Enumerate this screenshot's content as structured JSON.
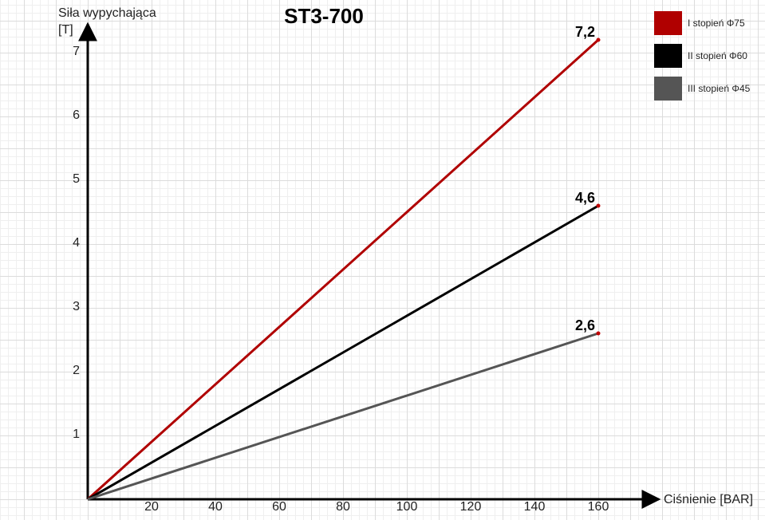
{
  "chart_data": {
    "type": "line",
    "title": "ST3-700",
    "xlabel": "Ciśnienie [BAR]",
    "ylabel": [
      "Siła wypychająca",
      "[T]"
    ],
    "x": [
      0,
      160
    ],
    "series": [
      {
        "name": "I stopień Φ75",
        "color": "#b00000",
        "values": [
          0,
          7.2
        ],
        "value_labels": [
          null,
          "7,2"
        ]
      },
      {
        "name": "II stopień Φ60",
        "color": "#000000",
        "values": [
          0,
          4.6
        ],
        "value_labels": [
          null,
          "4,6"
        ]
      },
      {
        "name": "III stopień Φ45",
        "color": "#555555",
        "values": [
          0,
          2.6
        ],
        "value_labels": [
          null,
          "2,6"
        ]
      }
    ],
    "xlim": [
      0,
      180
    ],
    "xticks": [
      20,
      40,
      60,
      80,
      100,
      120,
      140,
      160
    ],
    "ylim": [
      0,
      7.5
    ],
    "yticks": [
      1,
      2,
      3,
      4,
      5,
      6,
      7
    ],
    "legend": "top-right"
  }
}
